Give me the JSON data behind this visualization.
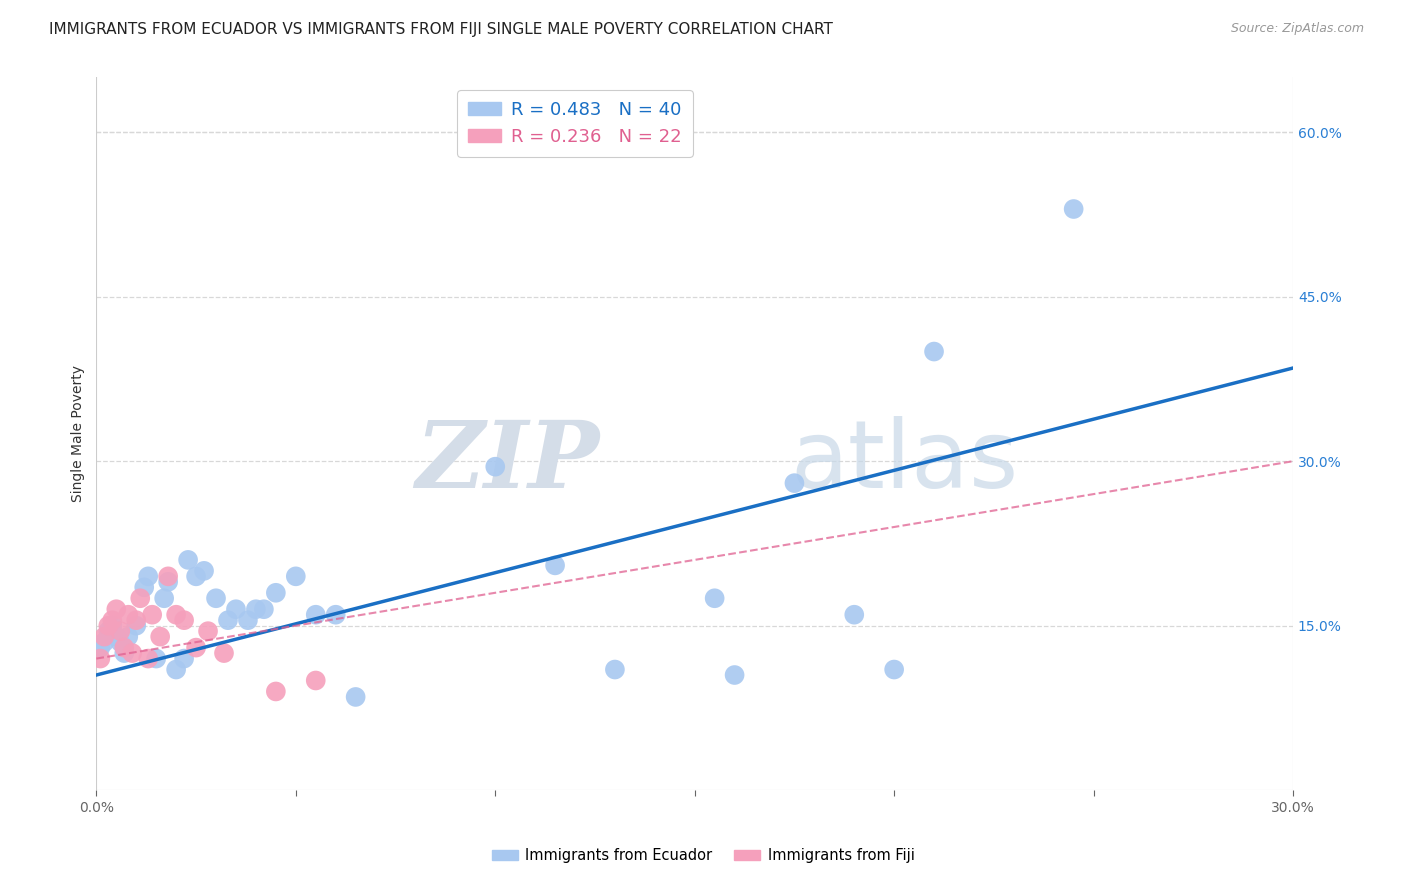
{
  "title": "IMMIGRANTS FROM ECUADOR VS IMMIGRANTS FROM FIJI SINGLE MALE POVERTY CORRELATION CHART",
  "source": "Source: ZipAtlas.com",
  "ylabel": "Single Male Poverty",
  "xlim": [
    0.0,
    0.3
  ],
  "ylim": [
    0.0,
    0.65
  ],
  "yticks_right": [
    0.15,
    0.3,
    0.45,
    0.6
  ],
  "ytick_labels_right": [
    "15.0%",
    "30.0%",
    "45.0%",
    "60.0%"
  ],
  "ecuador_R": 0.483,
  "ecuador_N": 40,
  "fiji_R": 0.236,
  "fiji_N": 22,
  "ecuador_color": "#a8c8f0",
  "ecuador_line_color": "#1a6fc4",
  "fiji_color": "#f5a0bc",
  "fiji_line_color": "#e06090",
  "watermark_zip": "ZIP",
  "watermark_atlas": "atlas",
  "ecuador_x": [
    0.001,
    0.002,
    0.003,
    0.004,
    0.005,
    0.006,
    0.007,
    0.008,
    0.01,
    0.012,
    0.013,
    0.015,
    0.017,
    0.018,
    0.02,
    0.022,
    0.023,
    0.025,
    0.027,
    0.03,
    0.033,
    0.035,
    0.038,
    0.04,
    0.042,
    0.045,
    0.05,
    0.055,
    0.06,
    0.065,
    0.1,
    0.115,
    0.13,
    0.155,
    0.16,
    0.175,
    0.19,
    0.2,
    0.21,
    0.245
  ],
  "ecuador_y": [
    0.13,
    0.135,
    0.145,
    0.15,
    0.14,
    0.135,
    0.125,
    0.14,
    0.15,
    0.185,
    0.195,
    0.12,
    0.175,
    0.19,
    0.11,
    0.12,
    0.21,
    0.195,
    0.2,
    0.175,
    0.155,
    0.165,
    0.155,
    0.165,
    0.165,
    0.18,
    0.195,
    0.16,
    0.16,
    0.085,
    0.295,
    0.205,
    0.11,
    0.175,
    0.105,
    0.28,
    0.16,
    0.11,
    0.4,
    0.53
  ],
  "fiji_x": [
    0.001,
    0.002,
    0.003,
    0.004,
    0.005,
    0.006,
    0.007,
    0.008,
    0.009,
    0.01,
    0.011,
    0.013,
    0.014,
    0.016,
    0.018,
    0.02,
    0.022,
    0.025,
    0.028,
    0.032,
    0.045,
    0.055
  ],
  "fiji_y": [
    0.12,
    0.14,
    0.15,
    0.155,
    0.165,
    0.145,
    0.13,
    0.16,
    0.125,
    0.155,
    0.175,
    0.12,
    0.16,
    0.14,
    0.195,
    0.16,
    0.155,
    0.13,
    0.145,
    0.125,
    0.09,
    0.1
  ],
  "background_color": "#ffffff",
  "grid_color": "#d8d8d8",
  "title_fontsize": 11,
  "axis_label_fontsize": 10,
  "tick_fontsize": 10,
  "legend_fontsize": 13
}
